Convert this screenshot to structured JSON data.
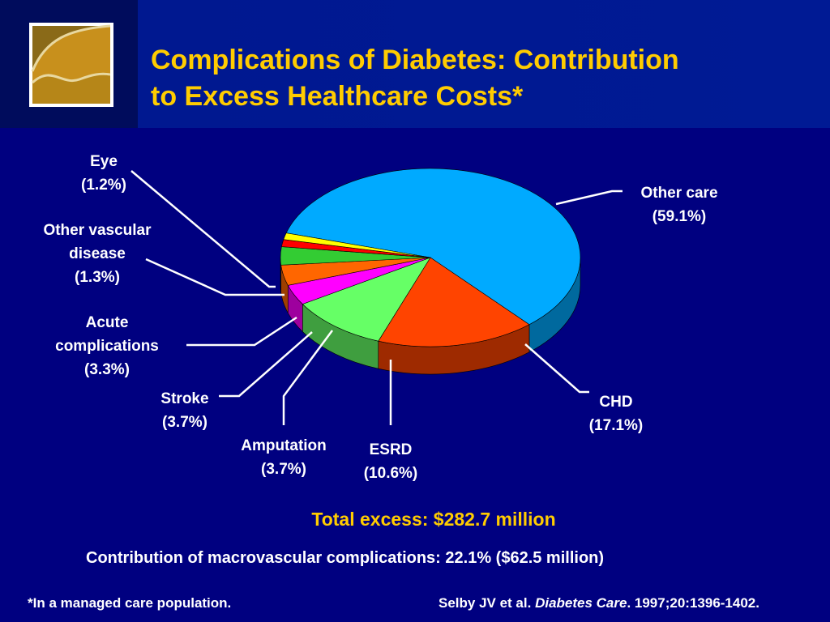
{
  "title_line1": "Complications of Diabetes: Contribution",
  "title_line2": "to Excess Healthcare Costs*",
  "colors": {
    "background": "#000080",
    "title": "#ffcc00",
    "text": "#ffffff"
  },
  "chart_data": {
    "type": "pie",
    "style": "3d",
    "slices": [
      {
        "label_lines": [
          "Other care",
          "(59.1%)"
        ],
        "value": 59.1,
        "color": "#00aaff"
      },
      {
        "label_lines": [
          "CHD",
          "(17.1%)"
        ],
        "value": 17.1,
        "color": "#ff4400"
      },
      {
        "label_lines": [
          "ESRD",
          "(10.6%)"
        ],
        "value": 10.6,
        "color": "#66ff66"
      },
      {
        "label_lines": [
          "Amputation",
          "(3.7%)"
        ],
        "value": 3.7,
        "color": "#ff00ff"
      },
      {
        "label_lines": [
          "Stroke",
          "(3.7%)"
        ],
        "value": 3.7,
        "color": "#ff6600"
      },
      {
        "label_lines": [
          "Acute",
          "complications",
          "(3.3%)"
        ],
        "value": 3.3,
        "color": "#33cc33"
      },
      {
        "label_lines": [
          "Other vascular",
          "disease",
          "(1.3%)"
        ],
        "value": 1.3,
        "color": "#ff0000"
      },
      {
        "label_lines": [
          "Eye",
          "(1.2%)"
        ],
        "value": 1.2,
        "color": "#ffff00"
      }
    ]
  },
  "total_text": "Total excess: $282.7 million",
  "macro_text": "Contribution of macrovascular complications: 22.1% ($62.5 million)",
  "footnote": "*In a managed care population.",
  "citation": {
    "authors": "Selby JV et al. ",
    "journal": "Diabetes Care",
    "details": ". 1997;20:1396-1402."
  }
}
